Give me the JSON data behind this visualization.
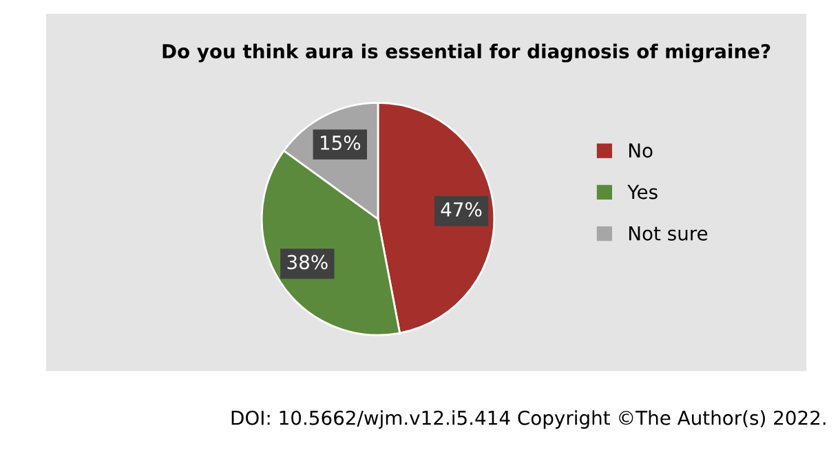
{
  "chart_data": {
    "type": "pie",
    "title": "Do you think aura is essential for diagnosis of migraine?",
    "categories": [
      "No",
      "Yes",
      "Not sure"
    ],
    "values": [
      47,
      38,
      15
    ],
    "colors": [
      "#a5302b",
      "#5b8a3c",
      "#a6a6a6"
    ],
    "value_labels": [
      "47%",
      "38%",
      "15%"
    ],
    "legend": "right",
    "annotations": [
      "DOI: 10.5662/wjm.v12.i5.414 Copyright ©The Author(s) 2022."
    ]
  }
}
